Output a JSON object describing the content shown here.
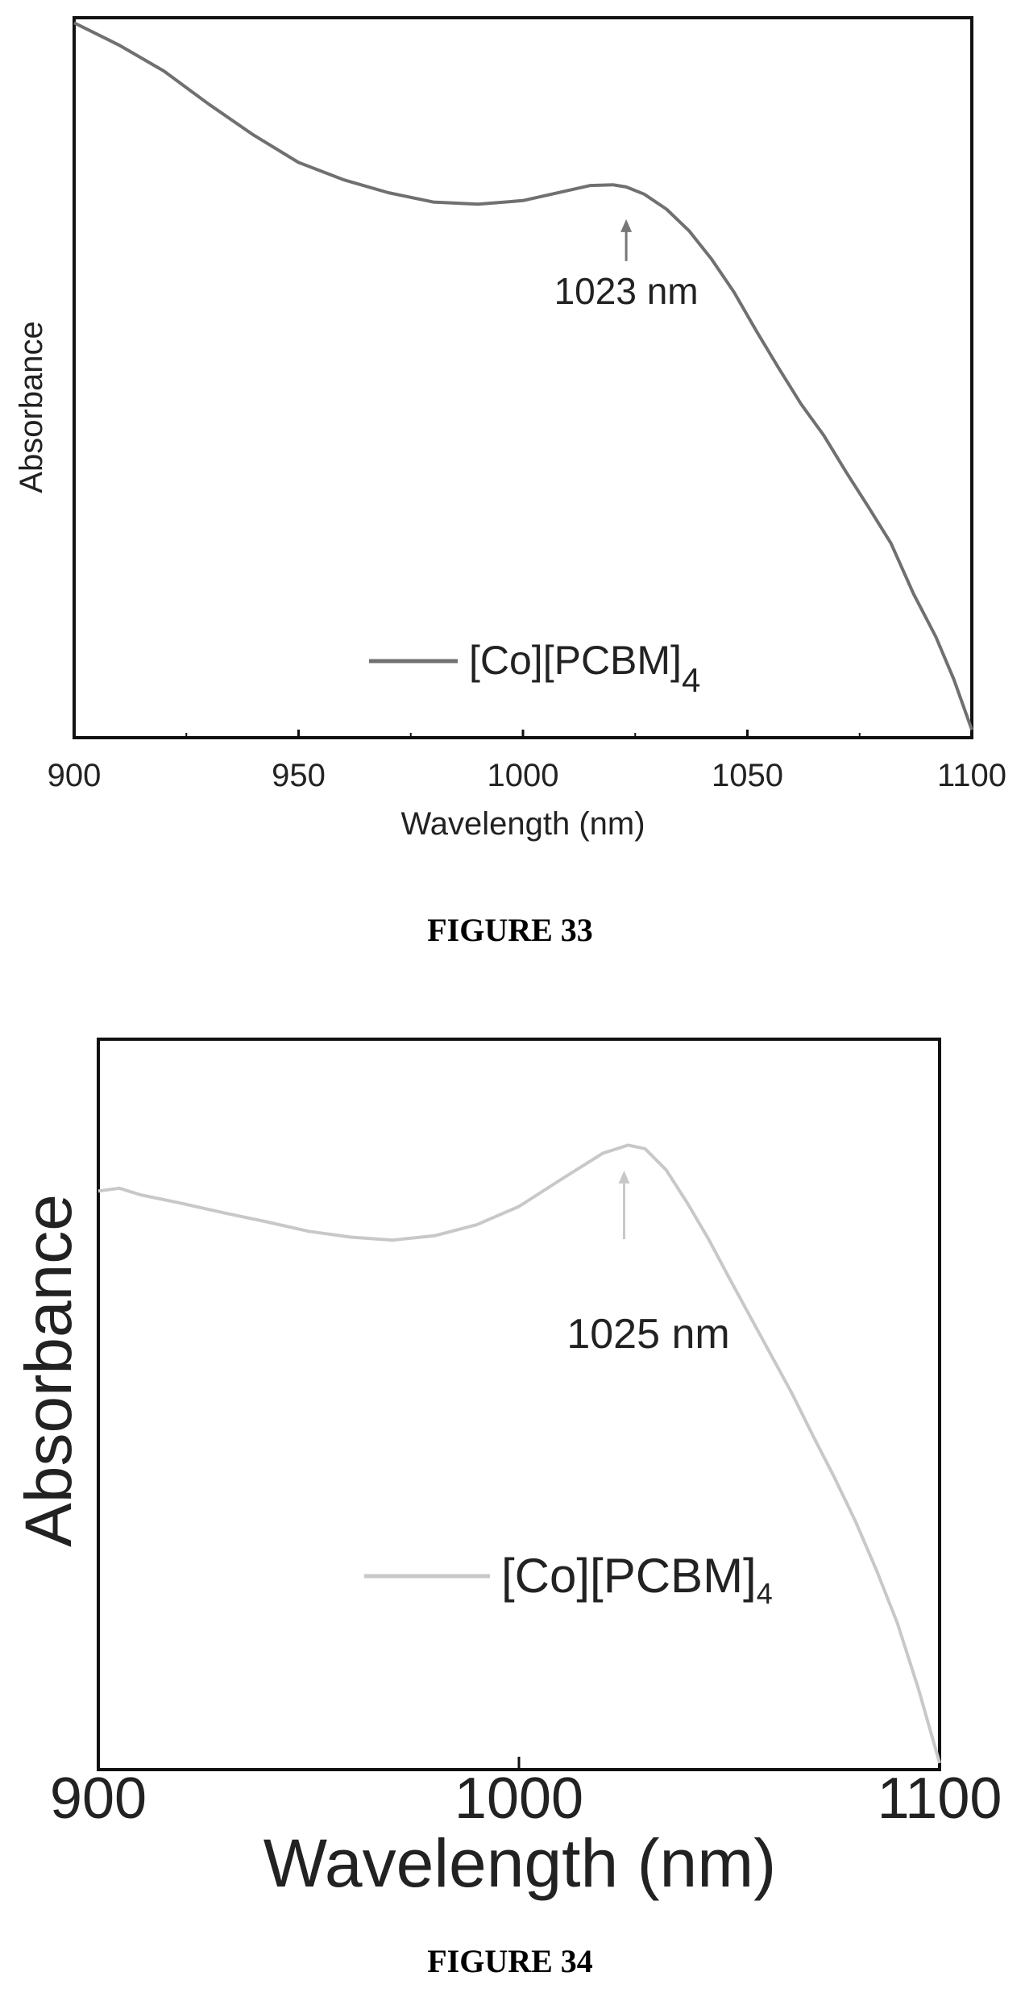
{
  "chart_data": [
    {
      "type": "line",
      "figure_caption": "FIGURE 33",
      "xlabel": "Wavelength (nm)",
      "ylabel": "Absorbance",
      "xlim": [
        900,
        1100
      ],
      "ylim": [
        0,
        1
      ],
      "x_ticks": [
        900,
        950,
        1000,
        1050,
        1100
      ],
      "x_minor_ticks": [
        925,
        975,
        1025,
        1075
      ],
      "series": [
        {
          "name": "[Co][PCBM]4",
          "color": "#707070",
          "points": [
            [
              900,
              0.993
            ],
            [
              910,
              0.962
            ],
            [
              920,
              0.926
            ],
            [
              930,
              0.88
            ],
            [
              940,
              0.837
            ],
            [
              950,
              0.799
            ],
            [
              960,
              0.775
            ],
            [
              970,
              0.757
            ],
            [
              980,
              0.744
            ],
            [
              990,
              0.741
            ],
            [
              1000,
              0.746
            ],
            [
              1010,
              0.76
            ],
            [
              1015,
              0.767
            ],
            [
              1020,
              0.768
            ],
            [
              1023,
              0.765
            ],
            [
              1027,
              0.755
            ],
            [
              1032,
              0.734
            ],
            [
              1037,
              0.704
            ],
            [
              1042,
              0.665
            ],
            [
              1047,
              0.619
            ],
            [
              1052,
              0.565
            ],
            [
              1057,
              0.513
            ],
            [
              1062,
              0.463
            ],
            [
              1067,
              0.42
            ],
            [
              1072,
              0.369
            ],
            [
              1077,
              0.32
            ],
            [
              1082,
              0.27
            ],
            [
              1087,
              0.2
            ],
            [
              1092,
              0.14
            ],
            [
              1096,
              0.081
            ],
            [
              1100,
              0.011
            ]
          ]
        }
      ],
      "annotation": {
        "text": "1023 nm",
        "x": 1023
      },
      "legend_main": "[Co][PCBM]",
      "legend_sub": "4",
      "legend_position": "bottom-center"
    },
    {
      "type": "line",
      "figure_caption": "FIGURE 34",
      "xlabel": "Wavelength (nm)",
      "ylabel": "Absorbance",
      "xlim": [
        900,
        1100
      ],
      "ylim": [
        0,
        1
      ],
      "x_ticks": [
        900,
        1000,
        1100
      ],
      "series": [
        {
          "name": "[Co][PCBM]4",
          "color": "#c8c8c8",
          "points": [
            [
              900,
              0.792
            ],
            [
              905,
              0.796
            ],
            [
              910,
              0.787
            ],
            [
              920,
              0.775
            ],
            [
              930,
              0.762
            ],
            [
              940,
              0.75
            ],
            [
              950,
              0.737
            ],
            [
              960,
              0.729
            ],
            [
              970,
              0.725
            ],
            [
              980,
              0.731
            ],
            [
              990,
              0.746
            ],
            [
              1000,
              0.771
            ],
            [
              1010,
              0.808
            ],
            [
              1020,
              0.844
            ],
            [
              1026,
              0.855
            ],
            [
              1030,
              0.85
            ],
            [
              1035,
              0.821
            ],
            [
              1040,
              0.776
            ],
            [
              1045,
              0.727
            ],
            [
              1050,
              0.673
            ],
            [
              1055,
              0.62
            ],
            [
              1060,
              0.567
            ],
            [
              1065,
              0.514
            ],
            [
              1070,
              0.456
            ],
            [
              1075,
              0.4
            ],
            [
              1080,
              0.34
            ],
            [
              1085,
              0.273
            ],
            [
              1090,
              0.2
            ],
            [
              1095,
              0.11
            ],
            [
              1100,
              0.009
            ]
          ]
        }
      ],
      "annotation": {
        "text": "1025 nm",
        "x": 1025
      },
      "legend_main": "[Co][PCBM]",
      "legend_sub": "4",
      "legend_position": "bottom-center"
    }
  ]
}
